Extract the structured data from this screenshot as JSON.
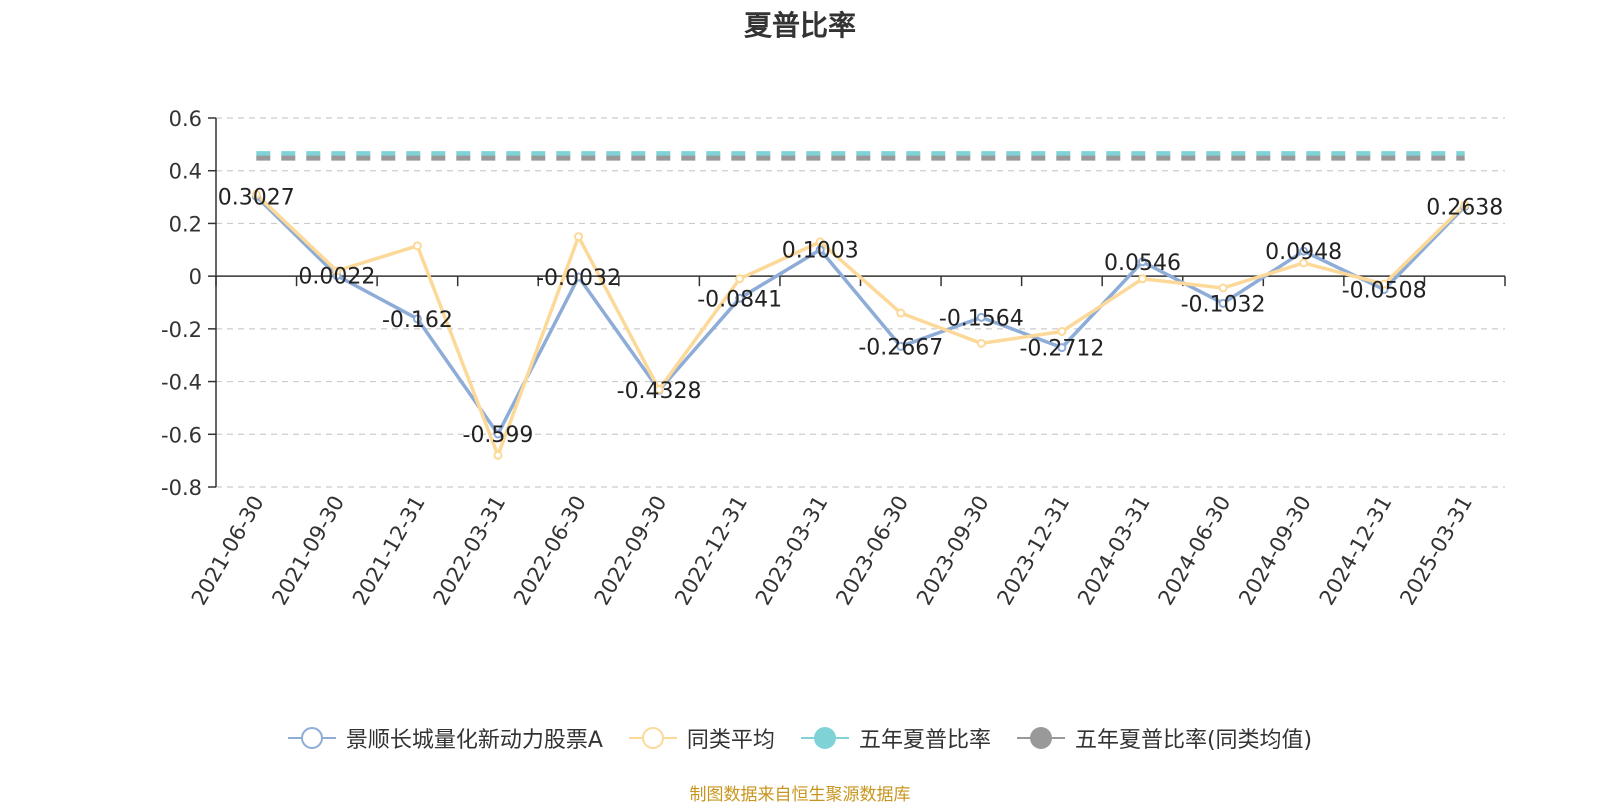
{
  "chart_data": {
    "type": "line",
    "title": "夏普比率",
    "categories": [
      "2021-06-30",
      "2021-09-30",
      "2021-12-31",
      "2022-03-31",
      "2022-06-30",
      "2022-09-30",
      "2022-12-31",
      "2023-03-31",
      "2023-06-30",
      "2023-09-30",
      "2023-12-31",
      "2024-03-31",
      "2024-06-30",
      "2024-09-30",
      "2024-12-31",
      "2025-03-31"
    ],
    "series": [
      {
        "name": "景顺长城量化新动力股票A",
        "color": "#8eacd8",
        "values": [
          0.3027,
          0.0022,
          -0.162,
          -0.599,
          -0.0032,
          -0.4328,
          -0.0841,
          0.1003,
          -0.2667,
          -0.1564,
          -0.2712,
          0.0546,
          -0.1032,
          0.0948,
          -0.0508,
          0.2638
        ],
        "labels": [
          "0.3027",
          "0.0022",
          "-0.162",
          "-0.599",
          "-0.0032",
          "-0.4328",
          "-0.0841",
          "0.1003",
          "-0.2667",
          "-0.1564",
          "-0.2712",
          "0.0546",
          "-0.1032",
          "0.0948",
          "-0.0508",
          "0.2638"
        ]
      },
      {
        "name": "同类平均",
        "color": "#fcd999",
        "values": [
          0.31,
          0.02,
          0.115,
          -0.68,
          0.15,
          -0.43,
          -0.01,
          0.13,
          -0.14,
          -0.255,
          -0.21,
          -0.01,
          -0.045,
          0.05,
          -0.03,
          0.27
        ]
      },
      {
        "name": "五年夏普比率",
        "color": "#7fd3d6",
        "dashed": true,
        "values": [
          0.465,
          0.465,
          0.465,
          0.465,
          0.465,
          0.465,
          0.465,
          0.465,
          0.465,
          0.465,
          0.465,
          0.465,
          0.465,
          0.465,
          0.465,
          0.465
        ]
      },
      {
        "name": "五年夏普比率(同类均值)",
        "color": "#999999",
        "dashed": true,
        "values": [
          0.448,
          0.448,
          0.448,
          0.448,
          0.448,
          0.448,
          0.448,
          0.448,
          0.448,
          0.448,
          0.448,
          0.448,
          0.448,
          0.448,
          0.448,
          0.448
        ]
      }
    ],
    "ylim": [
      -0.8,
      0.6
    ],
    "yticks": [
      "0.6",
      "0.4",
      "0.2",
      "0",
      "-0.2",
      "-0.4",
      "-0.6",
      "-0.8"
    ],
    "ytick_values": [
      0.6,
      0.4,
      0.2,
      0,
      -0.2,
      -0.4,
      -0.6,
      -0.8
    ],
    "grid": true,
    "legend_position": "bottom"
  },
  "source_text": "制图数据来自恒生聚源数据库"
}
